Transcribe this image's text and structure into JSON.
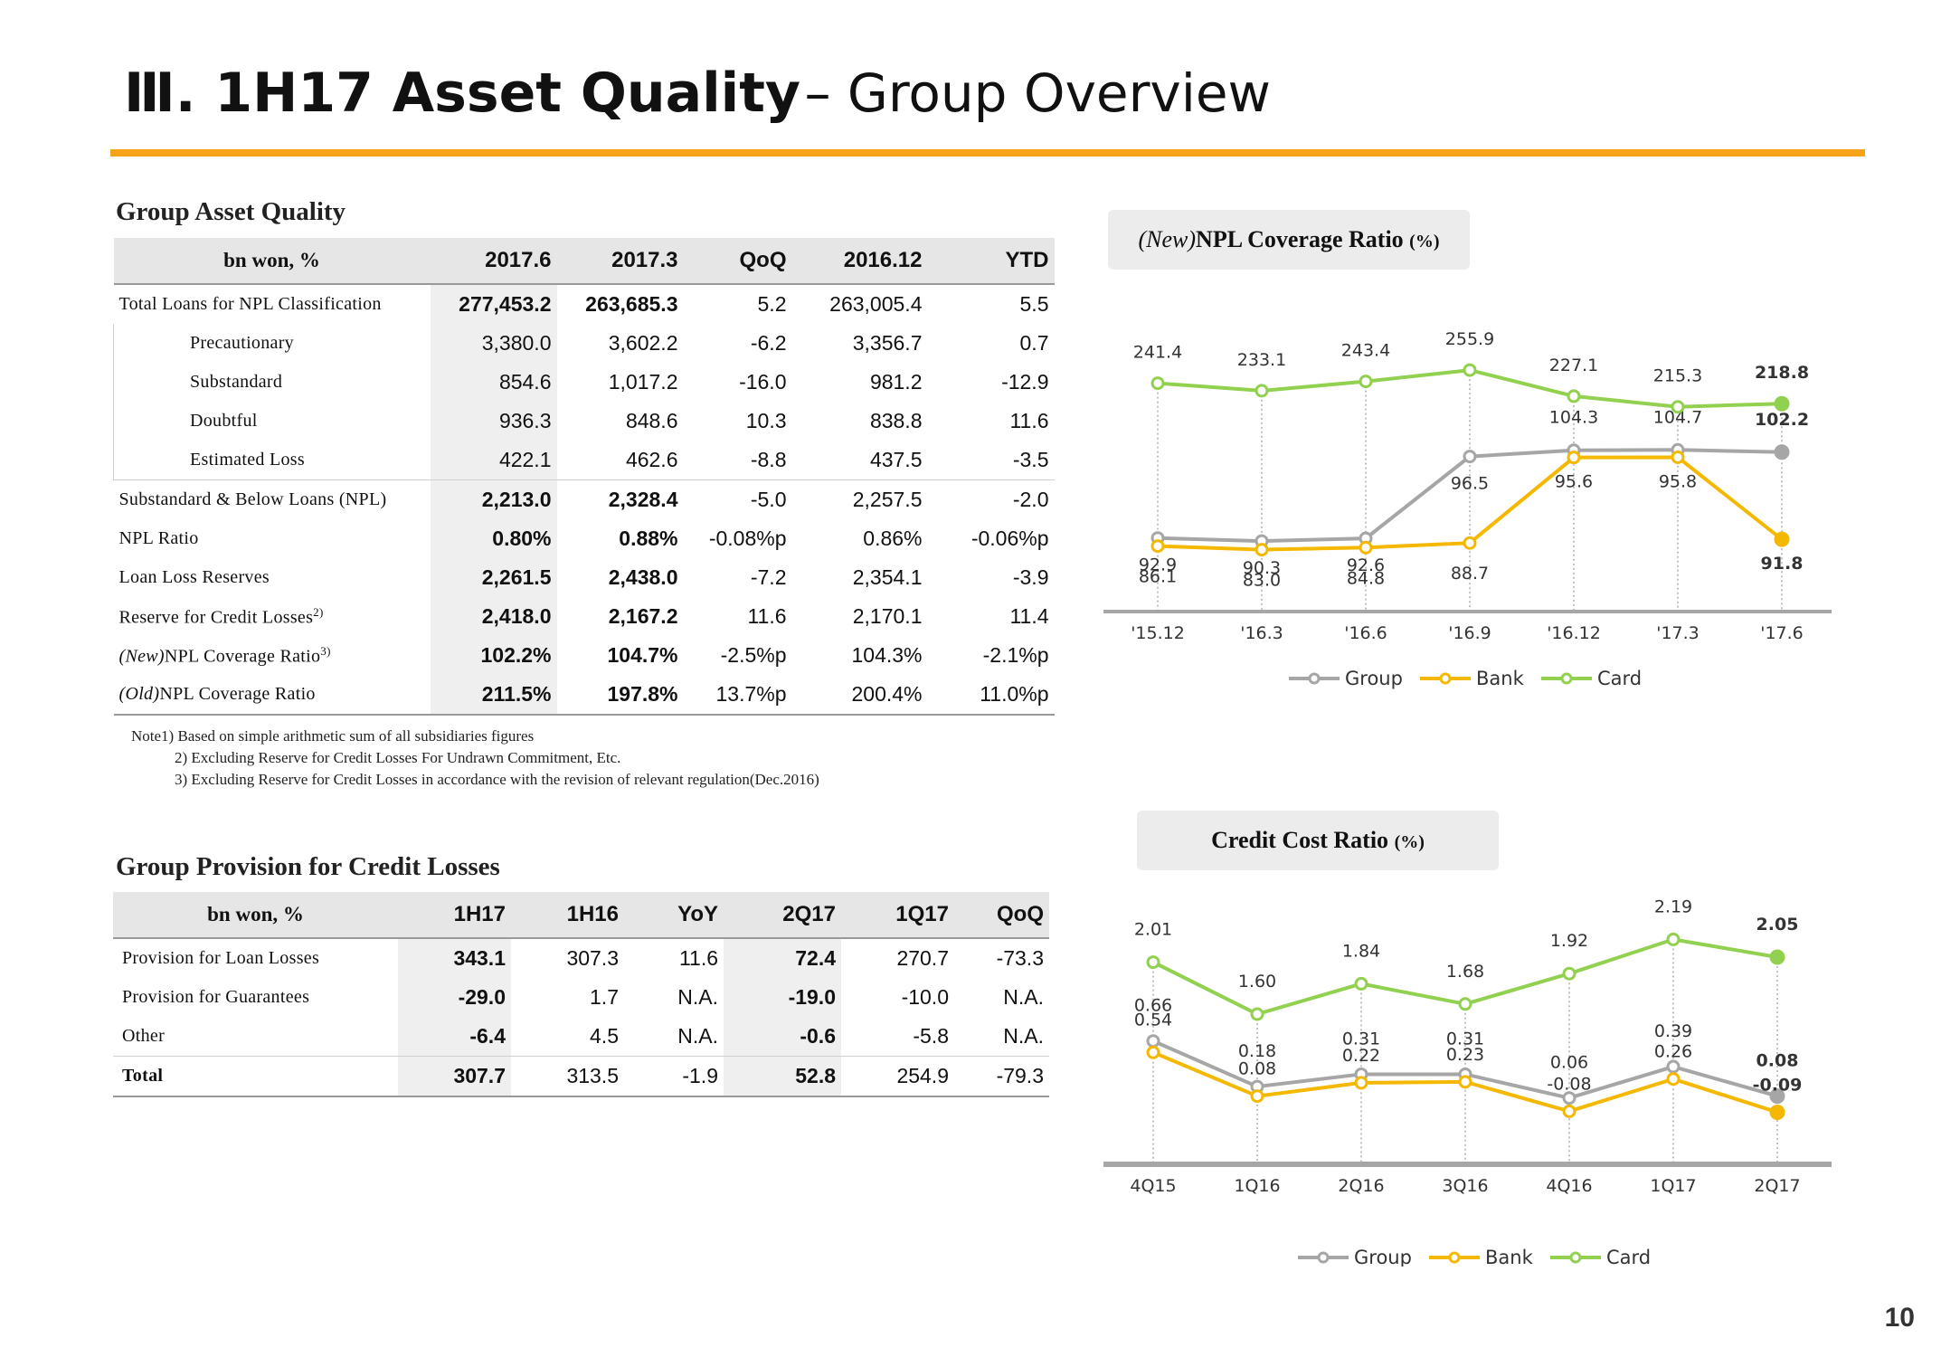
{
  "title": {
    "prefix": "Ⅲ. 1H17 Asset Quality",
    "suffix": "– Group Overview"
  },
  "page_number": "10",
  "colors": {
    "accent": "#f7a21b",
    "group": "#a6a6a6",
    "bank": "#f5b800",
    "card": "#92d050"
  },
  "asset_quality": {
    "section_title": "Group Asset Quality",
    "headers": [
      "bn won, %",
      "2017.6",
      "2017.3",
      "QoQ",
      "2016.12",
      "YTD"
    ],
    "rows": [
      {
        "label": "Total Loans for NPL Classification",
        "sup": "",
        "italic_prefix": "",
        "values": [
          "277,453.2",
          "263,685.3",
          "5.2",
          "263,005.4",
          "5.5"
        ],
        "bold": true,
        "sub": false
      },
      {
        "label": "Precautionary",
        "sup": "",
        "italic_prefix": "",
        "values": [
          "3,380.0",
          "3,602.2",
          "-6.2",
          "3,356.7",
          "0.7"
        ],
        "bold": false,
        "sub": true
      },
      {
        "label": "Substandard",
        "sup": "",
        "italic_prefix": "",
        "values": [
          "854.6",
          "1,017.2",
          "-16.0",
          "981.2",
          "-12.9"
        ],
        "bold": false,
        "sub": true
      },
      {
        "label": "Doubtful",
        "sup": "",
        "italic_prefix": "",
        "values": [
          "936.3",
          "848.6",
          "10.3",
          "838.8",
          "11.6"
        ],
        "bold": false,
        "sub": true
      },
      {
        "label": "Estimated Loss",
        "sup": "",
        "italic_prefix": "",
        "values": [
          "422.1",
          "462.6",
          "-8.8",
          "437.5",
          "-3.5"
        ],
        "bold": false,
        "sub": true
      },
      {
        "label": "Substandard & Below Loans (NPL)",
        "sup": "",
        "italic_prefix": "",
        "values": [
          "2,213.0",
          "2,328.4",
          "-5.0",
          "2,257.5",
          "-2.0"
        ],
        "bold": true,
        "sub": false
      },
      {
        "label": "NPL Ratio",
        "sup": "",
        "italic_prefix": "",
        "values": [
          "0.80%",
          "0.88%",
          "-0.08%p",
          "0.86%",
          "-0.06%p"
        ],
        "bold": true,
        "sub": false
      },
      {
        "label": "Loan Loss Reserves",
        "sup": "",
        "italic_prefix": "",
        "values": [
          "2,261.5",
          "2,438.0",
          "-7.2",
          "2,354.1",
          "-3.9"
        ],
        "bold": true,
        "sub": false
      },
      {
        "label": "Reserve for Credit Losses",
        "sup": "2)",
        "italic_prefix": "",
        "values": [
          "2,418.0",
          "2,167.2",
          "11.6",
          "2,170.1",
          "11.4"
        ],
        "bold": true,
        "sub": false
      },
      {
        "label": "NPL Coverage Ratio",
        "sup": "3)",
        "italic_prefix": "(New)",
        "values": [
          "102.2%",
          "104.7%",
          "-2.5%p",
          "104.3%",
          "-2.1%p"
        ],
        "bold": true,
        "sub": false
      },
      {
        "label": "NPL Coverage Ratio",
        "sup": "",
        "italic_prefix": "(Old)",
        "values": [
          "211.5%",
          "197.8%",
          "13.7%p",
          "200.4%",
          "11.0%p"
        ],
        "bold": true,
        "sub": false
      }
    ],
    "notes": [
      "Note1) Based on simple arithmetic sum of all subsidiaries figures",
      "2) Excluding Reserve for Credit Losses For Undrawn Commitment, Etc.",
      "3) Excluding Reserve for Credit Losses in accordance with the revision of relevant regulation(Dec.2016)"
    ]
  },
  "provision": {
    "section_title": "Group Provision for Credit Losses",
    "headers": [
      "bn won, %",
      "1H17",
      "1H16",
      "YoY",
      "2Q17",
      "1Q17",
      "QoQ"
    ],
    "rows": [
      {
        "label": "Provision for Loan Losses",
        "values": [
          "343.1",
          "307.3",
          "11.6",
          "72.4",
          "270.7",
          "-73.3"
        ]
      },
      {
        "label": "Provision for Guarantees",
        "values": [
          "-29.0",
          "1.7",
          "N.A.",
          "-19.0",
          "-10.0",
          "N.A."
        ]
      },
      {
        "label": "Other",
        "values": [
          "-6.4",
          "4.5",
          "N.A.",
          "-0.6",
          "-5.8",
          "N.A."
        ]
      },
      {
        "label": "Total",
        "values": [
          "307.7",
          "313.5",
          "-1.9",
          "52.8",
          "254.9",
          "-79.3"
        ]
      }
    ]
  },
  "chart_data": [
    {
      "type": "line",
      "title_italic": "(New)",
      "title": "NPL Coverage Ratio",
      "unit": "(%)",
      "categories": [
        "'15.12",
        "'16.3",
        "'16.6",
        "'16.9",
        "'16.12",
        "'17.3",
        "'17.6"
      ],
      "series": [
        {
          "name": "Group",
          "values": [
            92.9,
            90.3,
            92.6,
            96.5,
            104.3,
            104.7,
            102.2
          ],
          "labels": [
            "92.9",
            "90.3",
            "92.6",
            "96.5",
            "104.3",
            "104.7",
            "102.2"
          ],
          "color": "#a6a6a6"
        },
        {
          "name": "Bank",
          "values": [
            86.1,
            83.0,
            84.8,
            88.7,
            95.6,
            95.8,
            91.8
          ],
          "labels": [
            "86.1",
            "83.0",
            "84.8",
            "88.7",
            "95.6",
            "95.8",
            "91.8"
          ],
          "color": "#f5b800"
        },
        {
          "name": "Card",
          "values": [
            241.4,
            233.1,
            243.4,
            255.9,
            227.1,
            215.3,
            218.8
          ],
          "labels": [
            "241.4",
            "233.1",
            "243.4",
            "255.9",
            "227.1",
            "215.3",
            "218.8"
          ],
          "color": "#92d050"
        }
      ],
      "legend": "bottom",
      "grid": false
    },
    {
      "type": "line",
      "title_italic": "",
      "title": "Credit Cost Ratio",
      "unit": "(%)",
      "categories": [
        "4Q15",
        "1Q16",
        "2Q16",
        "3Q16",
        "4Q16",
        "1Q17",
        "2Q17"
      ],
      "series": [
        {
          "name": "Group",
          "values": [
            0.66,
            0.18,
            0.31,
            0.31,
            0.06,
            0.39,
            0.08
          ],
          "labels": [
            "0.66",
            "0.18",
            "0.31",
            "0.31",
            "0.06",
            "0.39",
            "0.08"
          ],
          "color": "#a6a6a6"
        },
        {
          "name": "Bank",
          "values": [
            0.54,
            0.08,
            0.22,
            0.23,
            -0.08,
            0.26,
            -0.09
          ],
          "labels": [
            "0.54",
            "0.08",
            "0.22",
            "0.23",
            "-0.08",
            "0.26",
            "-0.09"
          ],
          "color": "#f5b800"
        },
        {
          "name": "Card",
          "values": [
            2.01,
            1.6,
            1.84,
            1.68,
            1.92,
            2.19,
            2.05
          ],
          "labels": [
            "2.01",
            "1.60",
            "1.84",
            "1.68",
            "1.92",
            "2.19",
            "2.05"
          ],
          "color": "#92d050"
        }
      ],
      "legend": "bottom",
      "grid": false
    }
  ]
}
